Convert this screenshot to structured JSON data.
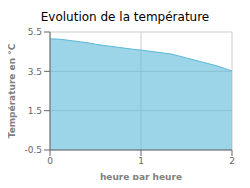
{
  "chart_data": {
    "type": "area",
    "title": "Evolution de la température",
    "xlabel": "heure par heure",
    "ylabel": "Température en °C",
    "x": [
      0.0,
      0.083,
      0.167,
      0.25,
      0.333,
      0.417,
      0.5,
      0.583,
      0.667,
      0.75,
      0.833,
      0.917,
      1.0,
      1.083,
      1.167,
      1.25,
      1.333,
      1.417,
      1.5,
      1.583,
      1.667,
      1.75,
      1.833,
      1.917,
      2.0
    ],
    "values": [
      5.15,
      5.14,
      5.1,
      5.05,
      5.0,
      4.95,
      4.88,
      4.82,
      4.77,
      4.72,
      4.67,
      4.62,
      4.58,
      4.53,
      4.48,
      4.43,
      4.38,
      4.28,
      4.18,
      4.08,
      3.98,
      3.88,
      3.78,
      3.65,
      3.52
    ],
    "color": "#5ab8d8",
    "xlim": [
      0,
      2
    ],
    "ylim": [
      -0.5,
      5.5
    ],
    "xticks": [
      0,
      1,
      2
    ],
    "yticks": [
      -0.5,
      1.5,
      3.5,
      5.5
    ],
    "grid": true
  }
}
